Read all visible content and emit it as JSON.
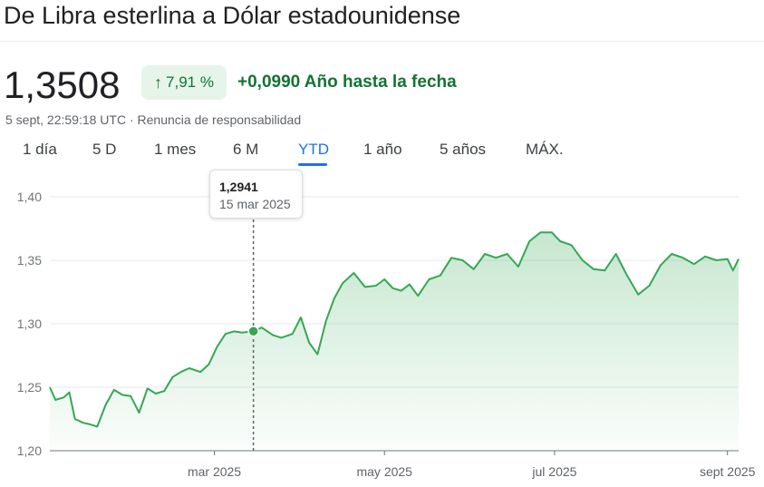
{
  "header": {
    "title": "De Libra esterlina a Dólar estadounidense",
    "price": "1,3508",
    "percent_change": "7,91 %",
    "abs_change": "+0,0990",
    "period_label": "Año hasta la fecha",
    "timestamp": "5 sept, 22:59:18 UTC",
    "separator": " · ",
    "disclaimer": "Renuncia de responsabilidad"
  },
  "tabs": [
    {
      "label": "1 día"
    },
    {
      "label": "5 D"
    },
    {
      "label": "1 mes"
    },
    {
      "label": "6 M"
    },
    {
      "label": "YTD",
      "active": true
    },
    {
      "label": "1 año"
    },
    {
      "label": "5 años"
    },
    {
      "label": "MÁX."
    }
  ],
  "tooltip": {
    "value": "1,2941",
    "date": "15 mar 2025"
  },
  "colors": {
    "accent": "#1a73e8",
    "positive": "#137333",
    "line": "#34a853"
  },
  "chart_data": {
    "type": "area",
    "y_ticks": [
      "1,40",
      "1,35",
      "1,30",
      "1,25",
      "1,20"
    ],
    "y_tick_values": [
      1.4,
      1.35,
      1.3,
      1.25,
      1.2
    ],
    "ylim": [
      1.2,
      1.4
    ],
    "x_ticks": [
      {
        "label": "mar 2025",
        "date": "2025-03-01"
      },
      {
        "label": "may 2025",
        "date": "2025-05-01"
      },
      {
        "label": "jul 2025",
        "date": "2025-07-01"
      },
      {
        "label": "sept 2025",
        "date": "2025-09-01"
      }
    ],
    "x_range": [
      "2025-01-01",
      "2025-09-05"
    ],
    "grid": true,
    "highlight": {
      "date": "2025-03-15",
      "value": 1.2941
    },
    "series": [
      {
        "x": [
          "2025-01-01",
          "2025-01-03",
          "2025-01-06",
          "2025-01-08",
          "2025-01-10",
          "2025-01-13",
          "2025-01-15",
          "2025-01-18",
          "2025-01-21",
          "2025-01-24",
          "2025-01-27",
          "2025-01-30",
          "2025-02-02",
          "2025-02-05",
          "2025-02-08",
          "2025-02-11",
          "2025-02-14",
          "2025-02-17",
          "2025-02-20",
          "2025-02-24",
          "2025-02-27",
          "2025-03-02",
          "2025-03-05",
          "2025-03-08",
          "2025-03-11",
          "2025-03-15",
          "2025-03-18",
          "2025-03-22",
          "2025-03-25",
          "2025-03-29",
          "2025-04-01",
          "2025-04-04",
          "2025-04-07",
          "2025-04-10",
          "2025-04-13",
          "2025-04-16",
          "2025-04-20",
          "2025-04-24",
          "2025-04-28",
          "2025-05-01",
          "2025-05-04",
          "2025-05-07",
          "2025-05-10",
          "2025-05-13",
          "2025-05-17",
          "2025-05-21",
          "2025-05-25",
          "2025-05-29",
          "2025-06-02",
          "2025-06-06",
          "2025-06-10",
          "2025-06-14",
          "2025-06-18",
          "2025-06-22",
          "2025-06-26",
          "2025-06-30",
          "2025-07-03",
          "2025-07-07",
          "2025-07-11",
          "2025-07-15",
          "2025-07-19",
          "2025-07-23",
          "2025-07-27",
          "2025-07-31",
          "2025-08-04",
          "2025-08-08",
          "2025-08-12",
          "2025-08-16",
          "2025-08-20",
          "2025-08-24",
          "2025-08-28",
          "2025-09-01",
          "2025-09-03",
          "2025-09-05"
        ],
        "y": [
          1.25,
          1.24,
          1.242,
          1.246,
          1.225,
          1.222,
          1.221,
          1.219,
          1.236,
          1.248,
          1.244,
          1.243,
          1.23,
          1.249,
          1.245,
          1.247,
          1.258,
          1.262,
          1.265,
          1.262,
          1.268,
          1.282,
          1.292,
          1.294,
          1.293,
          1.2941,
          1.297,
          1.291,
          1.289,
          1.292,
          1.305,
          1.285,
          1.276,
          1.302,
          1.32,
          1.332,
          1.34,
          1.329,
          1.33,
          1.335,
          1.328,
          1.326,
          1.331,
          1.322,
          1.335,
          1.338,
          1.352,
          1.35,
          1.343,
          1.355,
          1.352,
          1.355,
          1.345,
          1.365,
          1.372,
          1.372,
          1.365,
          1.362,
          1.35,
          1.343,
          1.342,
          1.355,
          1.338,
          1.323,
          1.33,
          1.346,
          1.355,
          1.352,
          1.347,
          1.353,
          1.35,
          1.351,
          1.342,
          1.351
        ]
      }
    ]
  }
}
